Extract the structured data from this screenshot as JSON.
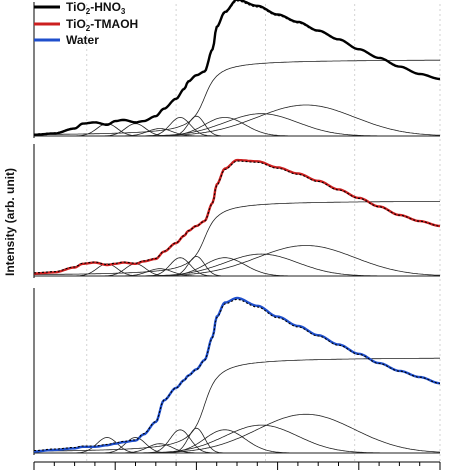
{
  "chart_data": {
    "type": "line",
    "ylabel": "Intensity (arb. unit)",
    "legend": {
      "placement": "top-left",
      "entries": [
        {
          "label_main": "TiO",
          "label_sub": "2",
          "label_rest": "-HNO",
          "label_sub2": "3",
          "color": "#000000"
        },
        {
          "label_main": "TiO",
          "label_sub": "2",
          "label_rest": "-TMAOH",
          "label_sub2": "",
          "color": "#cc1f1f"
        },
        {
          "label_main": "Water",
          "label_sub": "",
          "label_rest": "",
          "label_sub2": "",
          "color": "#1f4fcc"
        }
      ]
    },
    "grid": "vertical-dotted",
    "colors": {
      "fit": "#000000",
      "component": "#222222"
    },
    "panels": [
      {
        "series_name": "TiO2-HNO3",
        "color": "#000000",
        "x": [
          0.0,
          0.05,
          0.1,
          0.12,
          0.15,
          0.18,
          0.2,
          0.22,
          0.25,
          0.27,
          0.3,
          0.32,
          0.35,
          0.37,
          0.38,
          0.4,
          0.42,
          0.44,
          0.45,
          0.47,
          0.5,
          0.55,
          0.6,
          0.65,
          0.7,
          0.75,
          0.8,
          0.85,
          0.9,
          0.95,
          1.0
        ],
        "y": [
          0.01,
          0.02,
          0.06,
          0.1,
          0.11,
          0.09,
          0.12,
          0.13,
          0.11,
          0.12,
          0.16,
          0.22,
          0.3,
          0.38,
          0.44,
          0.49,
          0.52,
          0.7,
          0.88,
          1.0,
          1.1,
          1.05,
          0.98,
          0.92,
          0.85,
          0.78,
          0.7,
          0.63,
          0.56,
          0.5,
          0.46
        ]
      },
      {
        "series_name": "TiO2-TMAOH",
        "color": "#cc1f1f",
        "x": [
          0.0,
          0.05,
          0.1,
          0.12,
          0.15,
          0.18,
          0.2,
          0.22,
          0.25,
          0.27,
          0.3,
          0.32,
          0.35,
          0.37,
          0.38,
          0.4,
          0.42,
          0.44,
          0.45,
          0.47,
          0.5,
          0.55,
          0.6,
          0.65,
          0.7,
          0.75,
          0.8,
          0.85,
          0.9,
          0.95,
          1.0
        ],
        "y": [
          0.02,
          0.03,
          0.07,
          0.1,
          0.11,
          0.09,
          0.1,
          0.11,
          0.1,
          0.12,
          0.14,
          0.2,
          0.27,
          0.33,
          0.37,
          0.41,
          0.45,
          0.6,
          0.75,
          0.88,
          0.95,
          0.94,
          0.89,
          0.84,
          0.78,
          0.71,
          0.64,
          0.57,
          0.5,
          0.45,
          0.41
        ]
      },
      {
        "series_name": "Water",
        "color": "#1f4fcc",
        "x": [
          0.0,
          0.05,
          0.1,
          0.12,
          0.15,
          0.18,
          0.2,
          0.22,
          0.25,
          0.27,
          0.3,
          0.32,
          0.35,
          0.37,
          0.38,
          0.4,
          0.42,
          0.44,
          0.45,
          0.47,
          0.5,
          0.55,
          0.6,
          0.65,
          0.7,
          0.75,
          0.8,
          0.85,
          0.9,
          0.95,
          1.0
        ],
        "y": [
          0.01,
          0.02,
          0.03,
          0.04,
          0.04,
          0.05,
          0.06,
          0.07,
          0.08,
          0.12,
          0.2,
          0.34,
          0.42,
          0.47,
          0.5,
          0.54,
          0.6,
          0.75,
          0.88,
          0.97,
          1.0,
          0.95,
          0.88,
          0.82,
          0.76,
          0.7,
          0.64,
          0.58,
          0.53,
          0.49,
          0.45
        ]
      }
    ],
    "components": [
      {
        "kind": "gauss",
        "center": 0.18,
        "width": 0.025,
        "height": 0.1
      },
      {
        "kind": "gauss",
        "center": 0.25,
        "width": 0.025,
        "height": 0.1
      },
      {
        "kind": "gauss",
        "center": 0.31,
        "width": 0.03,
        "height": 0.06
      },
      {
        "kind": "gauss",
        "center": 0.36,
        "width": 0.025,
        "height": 0.15
      },
      {
        "kind": "gauss",
        "center": 0.4,
        "width": 0.02,
        "height": 0.16
      },
      {
        "kind": "gauss",
        "center": 0.47,
        "width": 0.05,
        "height": 0.15
      },
      {
        "kind": "gauss",
        "center": 0.56,
        "width": 0.09,
        "height": 0.18
      },
      {
        "kind": "gauss",
        "center": 0.67,
        "width": 0.12,
        "height": 0.25
      },
      {
        "kind": "step",
        "center": 0.42,
        "width": 0.025,
        "height": 0.62
      }
    ]
  }
}
